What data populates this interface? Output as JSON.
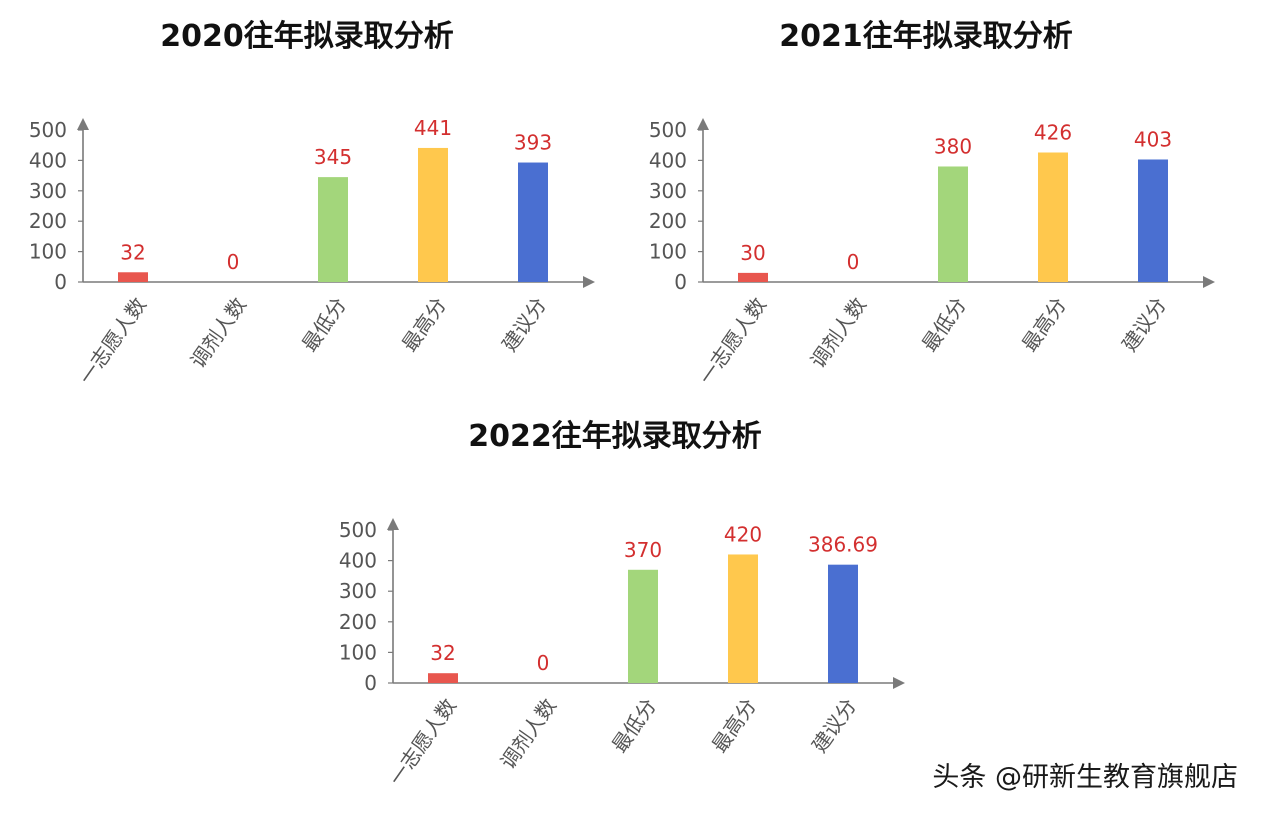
{
  "chart_data": [
    {
      "type": "bar",
      "title": "2020往年拟录取分析",
      "categories": [
        "一志愿人数",
        "调剂人数",
        "最低分",
        "最高分",
        "建议分"
      ],
      "values": [
        32,
        0,
        345,
        441,
        393
      ],
      "data_labels": [
        "32",
        "0",
        "345",
        "441",
        "393"
      ],
      "colors": [
        "#e8564e",
        "#e8564e",
        "#a3d67b",
        "#ffc84d",
        "#4a6fd1"
      ],
      "yticks": [
        0,
        100,
        200,
        300,
        400,
        500
      ],
      "ylim": [
        0,
        500
      ],
      "grid": false,
      "legend": false
    },
    {
      "type": "bar",
      "title": "2021往年拟录取分析",
      "categories": [
        "一志愿人数",
        "调剂人数",
        "最低分",
        "最高分",
        "建议分"
      ],
      "values": [
        30,
        0,
        380,
        426,
        403
      ],
      "data_labels": [
        "30",
        "0",
        "380",
        "426",
        "403"
      ],
      "colors": [
        "#e8564e",
        "#e8564e",
        "#a3d67b",
        "#ffc84d",
        "#4a6fd1"
      ],
      "yticks": [
        0,
        100,
        200,
        300,
        400,
        500
      ],
      "ylim": [
        0,
        500
      ],
      "grid": false,
      "legend": false
    },
    {
      "type": "bar",
      "title": "2022往年拟录取分析",
      "categories": [
        "一志愿人数",
        "调剂人数",
        "最低分",
        "最高分",
        "建议分"
      ],
      "values": [
        32,
        0,
        370,
        420,
        386.69
      ],
      "data_labels": [
        "32",
        "0",
        "370",
        "420",
        "386.69"
      ],
      "colors": [
        "#e8564e",
        "#e8564e",
        "#a3d67b",
        "#ffc84d",
        "#4a6fd1"
      ],
      "yticks": [
        0,
        100,
        200,
        300,
        400,
        500
      ],
      "ylim": [
        0,
        500
      ],
      "grid": false,
      "legend": false
    }
  ],
  "watermark": "头条 @研新生教育旗舰店",
  "style": {
    "axis_color": "#7a7a7a",
    "tick_color": "#555555",
    "data_label_color": "#d32f2f",
    "title_color": "#111111"
  }
}
